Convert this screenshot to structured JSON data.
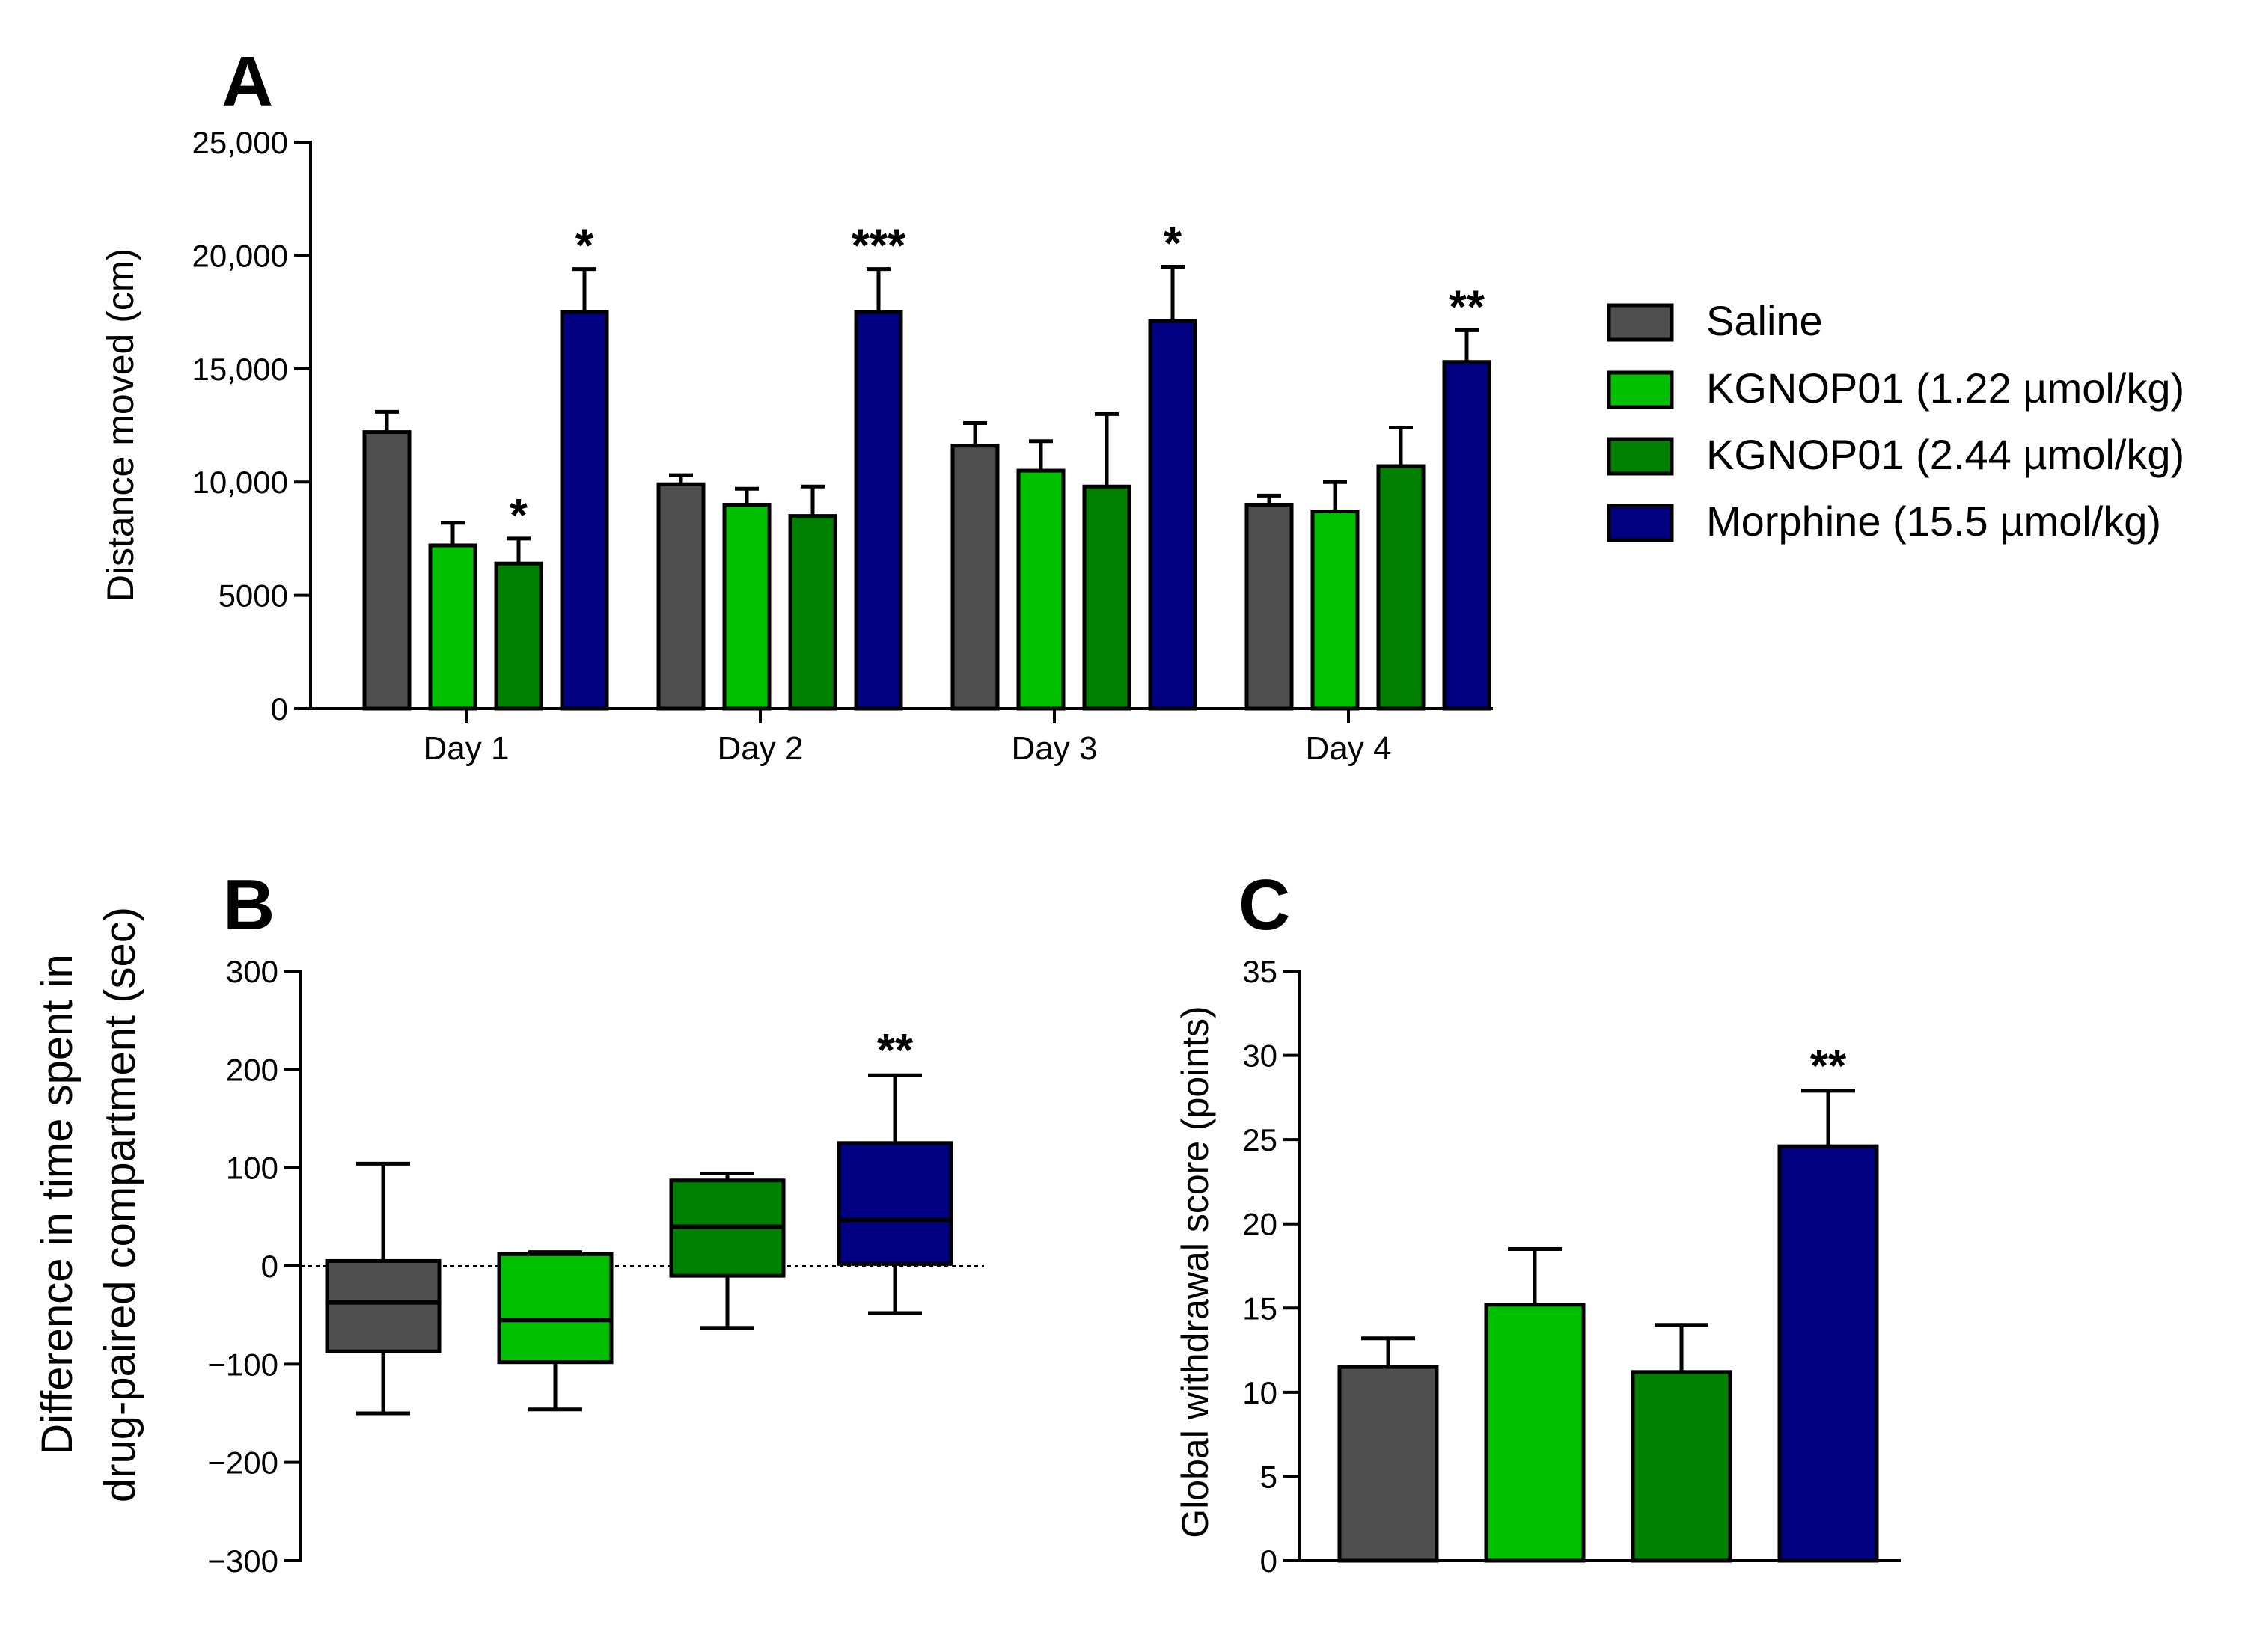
{
  "colors": {
    "saline": "#4f4f4f",
    "kg122": "#00c000",
    "kg244": "#008000",
    "morphine": "#000080"
  },
  "legend": [
    {
      "label": "Saline",
      "color_key": "saline"
    },
    {
      "label": "KGNOP01 (1.22 µmol/kg)",
      "color_key": "kg122"
    },
    {
      "label": "KGNOP01 (2.44 µmol/kg)",
      "color_key": "kg244"
    },
    {
      "label": "Morphine (15.5 µmol/kg)",
      "color_key": "morphine"
    }
  ],
  "chart_data": [
    {
      "panel": "A",
      "type": "bar",
      "ylabel": "Distance moved (cm)",
      "ylim": [
        0,
        25000
      ],
      "yticks": [
        "0",
        "5000",
        "10,000",
        "15,000",
        "20,000",
        "25,000"
      ],
      "ytick_values": [
        0,
        5000,
        10000,
        15000,
        20000,
        25000
      ],
      "categories": [
        "Day 1",
        "Day 2",
        "Day 3",
        "Day 4"
      ],
      "series": [
        {
          "name": "Saline",
          "color_key": "saline",
          "values": [
            12200,
            9900,
            11600,
            9000
          ],
          "errors": [
            900,
            400,
            1000,
            400
          ],
          "sig": [
            "",
            "",
            "",
            ""
          ]
        },
        {
          "name": "KGNOP01 (1.22 µmol/kg)",
          "color_key": "kg122",
          "values": [
            7200,
            9000,
            10500,
            8700
          ],
          "errors": [
            1000,
            700,
            1300,
            1300
          ],
          "sig": [
            "",
            "",
            "",
            ""
          ]
        },
        {
          "name": "KGNOP01 (2.44 µmol/kg)",
          "color_key": "kg244",
          "values": [
            6400,
            8500,
            9800,
            10700
          ],
          "errors": [
            1100,
            1300,
            3200,
            1700
          ],
          "sig": [
            "*",
            "",
            "",
            ""
          ]
        },
        {
          "name": "Morphine (15.5 µmol/kg)",
          "color_key": "morphine",
          "values": [
            17500,
            17500,
            17100,
            15300
          ],
          "errors": [
            1900,
            1900,
            2400,
            1400
          ],
          "sig": [
            "*",
            "***",
            "*",
            "**"
          ]
        }
      ]
    },
    {
      "panel": "B",
      "type": "box",
      "ylabel_line1": "Difference in time spent in",
      "ylabel_line2": "drug-paired compartment (sec)",
      "ylim": [
        -300,
        300
      ],
      "yticks": [
        "300",
        "200",
        "100",
        "0",
        "−100",
        "−200",
        "−300"
      ],
      "ytick_values": [
        300,
        200,
        100,
        0,
        -100,
        -200,
        -300
      ],
      "boxes": [
        {
          "name": "Saline",
          "color_key": "saline",
          "min": -150,
          "q1": -87,
          "median": -37,
          "q3": 5,
          "max": 104,
          "sig": ""
        },
        {
          "name": "KGNOP01 (1.22 µmol/kg)",
          "color_key": "kg122",
          "min": -146,
          "q1": -98,
          "median": -55,
          "q3": 12,
          "max": 14,
          "sig": ""
        },
        {
          "name": "KGNOP01 (2.44 µmol/kg)",
          "color_key": "kg244",
          "min": -63,
          "q1": -10,
          "median": 40,
          "q3": 87,
          "max": 94,
          "sig": ""
        },
        {
          "name": "Morphine (15.5 µmol/kg)",
          "color_key": "morphine",
          "min": -48,
          "q1": 2,
          "median": 47,
          "q3": 125,
          "max": 194,
          "sig": "**"
        }
      ]
    },
    {
      "panel": "C",
      "type": "bar",
      "ylabel": "Global withdrawal score (points)",
      "ylim": [
        0,
        35
      ],
      "yticks": [
        "0",
        "5",
        "10",
        "15",
        "20",
        "25",
        "30",
        "35"
      ],
      "ytick_values": [
        0,
        5,
        10,
        15,
        20,
        25,
        30,
        35
      ],
      "categories": [
        "Saline",
        "KGNOP01 (1.22 µmol/kg)",
        "KGNOP01 (2.44 µmol/kg)",
        "Morphine (15.5 µmol/kg)"
      ],
      "color_keys": [
        "saline",
        "kg122",
        "kg244",
        "morphine"
      ],
      "values": [
        11.5,
        15.2,
        11.2,
        24.6
      ],
      "errors": [
        1.7,
        3.3,
        2.8,
        3.3
      ],
      "sig": [
        "",
        "",
        "",
        "**"
      ]
    }
  ]
}
